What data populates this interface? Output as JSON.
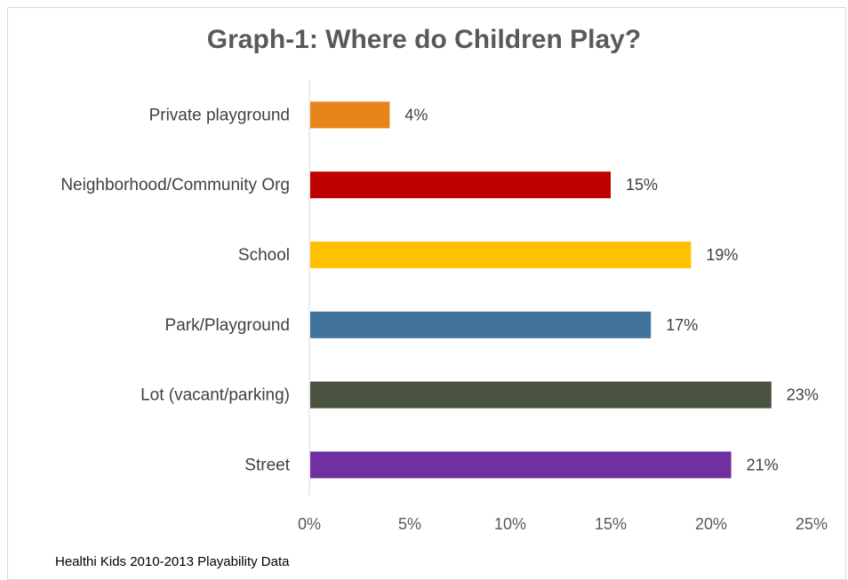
{
  "chart_data": {
    "type": "bar",
    "orientation": "horizontal",
    "title": "Graph-1: Where do Children Play?",
    "categories": [
      "Private playground",
      "Neighborhood/Community Org",
      "School",
      "Park/Playground",
      "Lot (vacant/parking)",
      "Street"
    ],
    "values": [
      4,
      15,
      19,
      17,
      23,
      21
    ],
    "value_labels": [
      "4%",
      "15%",
      "19%",
      "17%",
      "23%",
      "21%"
    ],
    "colors": [
      "#E8851A",
      "#C00000",
      "#FFC000",
      "#41729A",
      "#4A5240",
      "#7030A0"
    ],
    "x_ticks": [
      0,
      5,
      10,
      15,
      20,
      25
    ],
    "x_tick_labels": [
      "0%",
      "5%",
      "10%",
      "15%",
      "20%",
      "25%"
    ],
    "xlim": [
      0,
      25
    ],
    "xlabel": "",
    "ylabel": "",
    "grid": false
  },
  "source_note": "Healthi Kids 2010-2013 Playability Data"
}
